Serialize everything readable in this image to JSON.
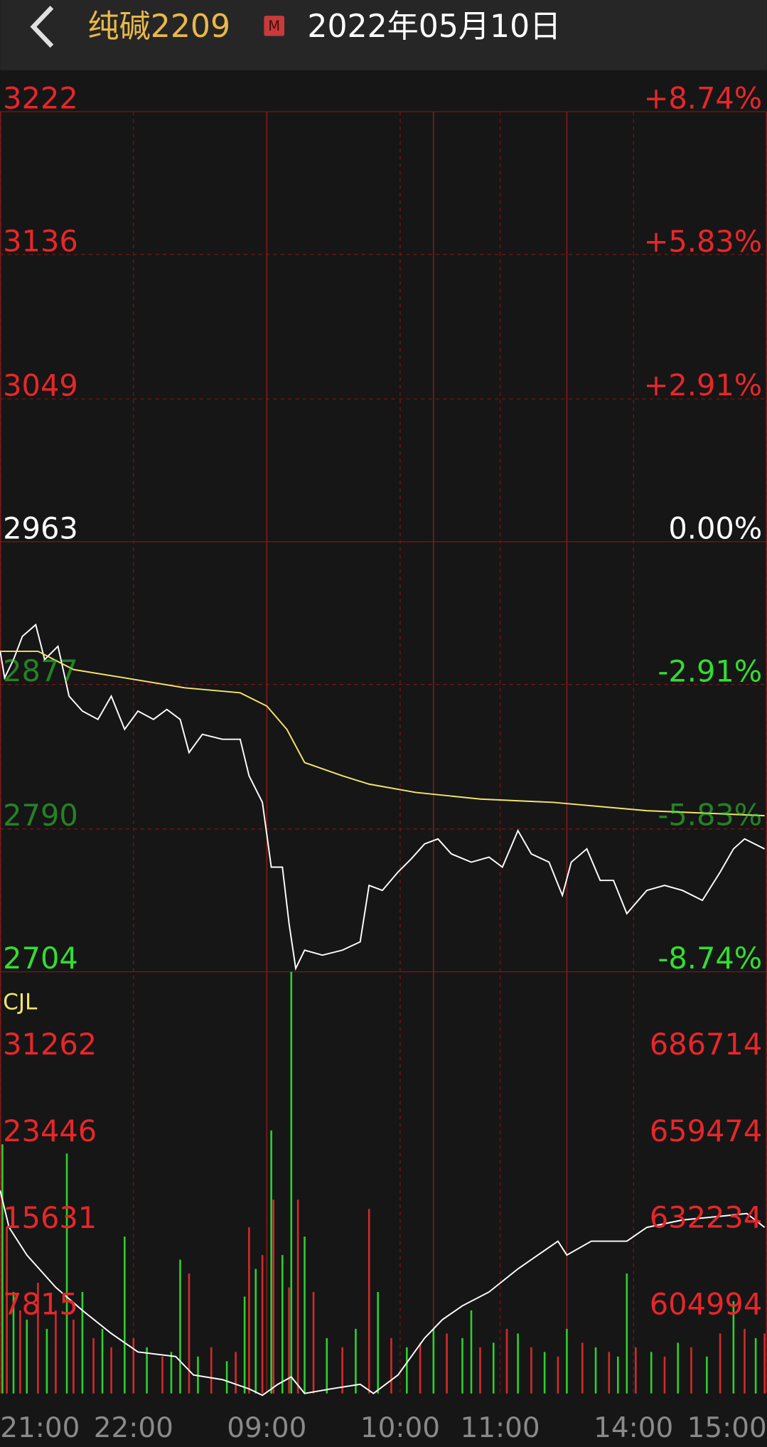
{
  "header": {
    "title": "纯碱2209",
    "badge": "M",
    "date": "2022年05月10日"
  },
  "chart_data": [
    {
      "type": "line",
      "xlim": [
        0,
        345
      ],
      "xticks": [
        {
          "value": 0,
          "label": "21:00"
        },
        {
          "value": 60,
          "label": "22:00"
        },
        {
          "value": 120,
          "label": "09:00"
        },
        {
          "value": 180,
          "label": "10:00"
        },
        {
          "value": 225,
          "label": "11:00"
        },
        {
          "value": 285,
          "label": "14:00"
        },
        {
          "value": 345,
          "label": "15:00"
        }
      ],
      "session_breaks": [
        120,
        195,
        255
      ],
      "ylim": [
        2704,
        3222
      ],
      "yticks": [
        3222,
        3136,
        3049,
        2963,
        2877,
        2790,
        2704
      ],
      "y2lim": [
        -8.74,
        8.74
      ],
      "y2ticks": [
        {
          "value": 8.74,
          "label": "+8.74%"
        },
        {
          "value": 5.83,
          "label": "+5.83%"
        },
        {
          "value": 2.91,
          "label": "+2.91%"
        },
        {
          "value": 0,
          "label": "0.00%"
        },
        {
          "value": -2.91,
          "label": "-2.91%"
        },
        {
          "value": -5.83,
          "label": "-5.83%"
        },
        {
          "value": -8.74,
          "label": "-8.74%"
        }
      ],
      "series": [
        {
          "color": "#ffffff",
          "x": [
            0,
            2,
            6,
            10,
            16,
            20,
            26,
            31,
            37,
            44,
            50,
            56,
            62,
            69,
            75,
            81,
            85,
            91,
            100,
            108,
            112,
            118,
            122,
            127,
            130,
            133,
            137,
            145,
            154,
            162,
            166,
            172,
            179,
            185,
            191,
            197,
            203,
            212,
            220,
            226,
            233,
            239,
            247,
            253,
            257,
            264,
            270,
            276,
            282,
            291,
            299,
            307,
            316,
            324,
            330,
            335,
            344
          ],
          "values": [
            2897,
            2881,
            2892,
            2906,
            2913,
            2892,
            2900,
            2870,
            2861,
            2856,
            2870,
            2850,
            2861,
            2856,
            2862,
            2856,
            2836,
            2847,
            2844,
            2844,
            2822,
            2806,
            2767,
            2767,
            2733,
            2706,
            2717,
            2714,
            2717,
            2722,
            2756,
            2753,
            2764,
            2772,
            2781,
            2784,
            2775,
            2770,
            2773,
            2767,
            2789,
            2775,
            2770,
            2750,
            2770,
            2778,
            2759,
            2759,
            2739,
            2753,
            2756,
            2753,
            2747,
            2764,
            2778,
            2784,
            2778
          ]
        },
        {
          "color": "#f2e56b",
          "x": [
            0,
            17,
            33,
            56,
            83,
            108,
            120,
            129,
            137,
            154,
            166,
            187,
            216,
            249,
            291,
            344
          ],
          "values": [
            2897,
            2897,
            2886,
            2881,
            2875,
            2872,
            2864,
            2850,
            2830,
            2822,
            2817,
            2812,
            2808,
            2806,
            2801,
            2798
          ]
        }
      ]
    },
    {
      "type": "bar",
      "title": "CJL",
      "xlim": [
        0,
        345
      ],
      "ylim": [
        0,
        38000
      ],
      "yticks": [
        31262,
        23446,
        15631,
        7815
      ],
      "y2lim": [
        577750,
        710200
      ],
      "y2ticks": [
        686714,
        659474,
        632234,
        604994
      ],
      "x": [
        1,
        3,
        6,
        9,
        12,
        17,
        21,
        25,
        30,
        33,
        37,
        42,
        46,
        50,
        56,
        60,
        66,
        73,
        77,
        81,
        85,
        89,
        95,
        102,
        106,
        110,
        112,
        115,
        118,
        122,
        123,
        127,
        130,
        131,
        134,
        137,
        141,
        147,
        154,
        160,
        166,
        170,
        176,
        183,
        189,
        195,
        201,
        208,
        212,
        216,
        222,
        228,
        233,
        239,
        245,
        251,
        255,
        262,
        268,
        274,
        278,
        282,
        286,
        293,
        299,
        305,
        311,
        318,
        324,
        330,
        335,
        340,
        344
      ],
      "values": [
        22450,
        14967,
        9147,
        7484,
        6652,
        9978,
        5821,
        7484,
        21619,
        6652,
        9147,
        4989,
        5821,
        4158,
        14136,
        4989,
        4158,
        3326,
        3742,
        12057,
        10810,
        3326,
        4158,
        2910,
        3742,
        8731,
        14967,
        11225,
        12473,
        23698,
        17462,
        12473,
        9562,
        37990,
        17462,
        14136,
        9147,
        4989,
        4158,
        5821,
        16630,
        9147,
        4989,
        4158,
        4573,
        5821,
        5405,
        4989,
        7484,
        4158,
        4573,
        5821,
        5405,
        4158,
        3742,
        3326,
        5821,
        4573,
        4158,
        3742,
        3326,
        10810,
        4158,
        3742,
        3326,
        4573,
        4158,
        3326,
        5405,
        8326,
        5821,
        4989,
        5405
      ],
      "colors": [
        "#2fcf2f",
        "#d42a2a",
        "#2fcf2f",
        "#d42a2a",
        "#2fcf2f",
        "#d42a2a",
        "#2fcf2f",
        "#d42a2a",
        "#2fcf2f",
        "#d42a2a",
        "#2fcf2f",
        "#d42a2a",
        "#2fcf2f",
        "#d42a2a",
        "#2fcf2f",
        "#d42a2a",
        "#2fcf2f",
        "#d42a2a",
        "#2fcf2f",
        "#2fcf2f",
        "#d42a2a",
        "#2fcf2f",
        "#d42a2a",
        "#2fcf2f",
        "#d42a2a",
        "#2fcf2f",
        "#d42a2a",
        "#2fcf2f",
        "#d42a2a",
        "#2fcf2f",
        "#d42a2a",
        "#2fcf2f",
        "#d42a2a",
        "#2fcf2f",
        "#d42a2a",
        "#2fcf2f",
        "#d42a2a",
        "#2fcf2f",
        "#d42a2a",
        "#2fcf2f",
        "#d42a2a",
        "#2fcf2f",
        "#d42a2a",
        "#2fcf2f",
        "#d42a2a",
        "#2fcf2f",
        "#d42a2a",
        "#2fcf2f",
        "#2fcf2f",
        "#d42a2a",
        "#2fcf2f",
        "#d42a2a",
        "#2fcf2f",
        "#d42a2a",
        "#2fcf2f",
        "#d42a2a",
        "#2fcf2f",
        "#d42a2a",
        "#2fcf2f",
        "#d42a2a",
        "#2fcf2f",
        "#2fcf2f",
        "#d42a2a",
        "#2fcf2f",
        "#d42a2a",
        "#2fcf2f",
        "#d42a2a",
        "#2fcf2f",
        "#d42a2a",
        "#2fcf2f",
        "#d42a2a",
        "#2fcf2f",
        "#d42a2a"
      ],
      "series": [
        {
          "axis": "y2",
          "color": "#ffffff",
          "x": [
            0,
            4,
            12,
            25,
            37,
            50,
            62,
            79,
            87,
            100,
            112,
            118,
            125,
            131,
            137,
            149,
            162,
            168,
            179,
            191,
            199,
            208,
            220,
            233,
            245,
            251,
            255,
            266,
            282,
            291,
            307,
            324,
            336,
            344
          ],
          "values": [
            641509,
            629917,
            621223,
            611080,
            603835,
            596590,
            590794,
            589345,
            583549,
            582100,
            579202,
            577173,
            580651,
            582969,
            577753,
            579202,
            580651,
            577753,
            583549,
            595141,
            600937,
            605284,
            609631,
            616876,
            622672,
            625570,
            621223,
            625570,
            625570,
            629917,
            632235,
            633394,
            634263,
            629917
          ]
        }
      ]
    }
  ]
}
